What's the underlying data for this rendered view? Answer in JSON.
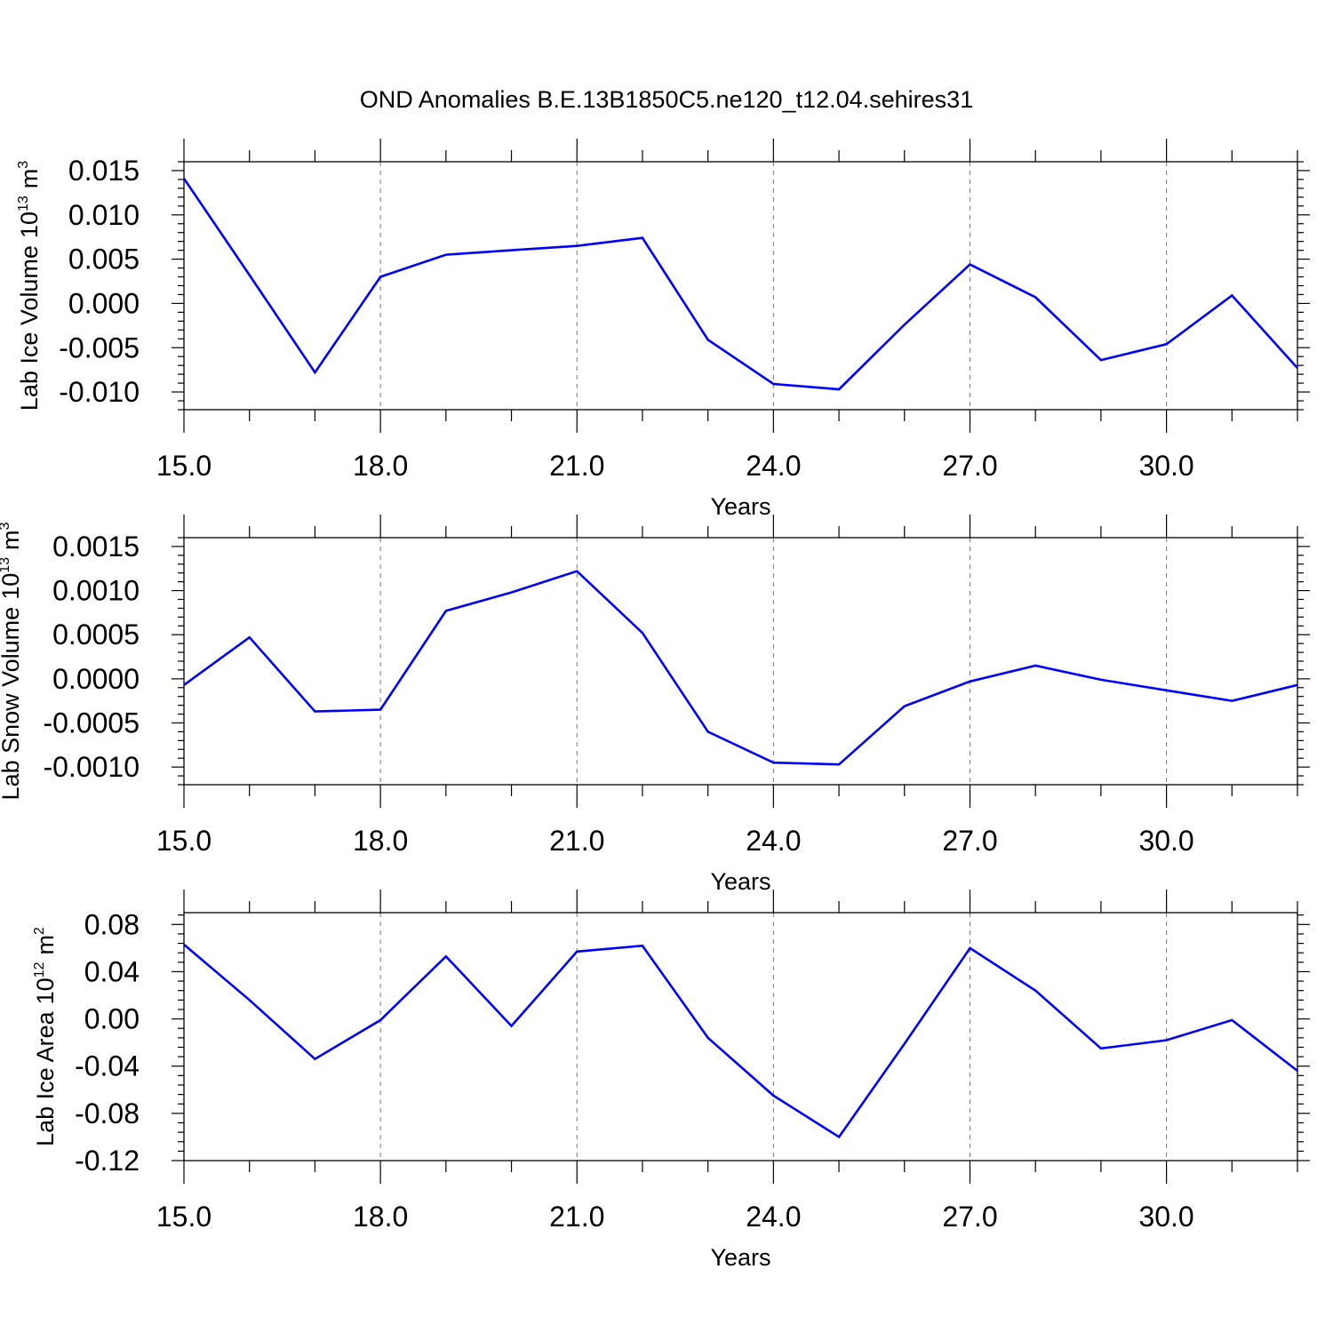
{
  "title": "OND Anomalies B.E.13B1850C5.ne120_t12.04.sehires31",
  "colors": {
    "series": "#0000ff",
    "axis": "#000000",
    "grid": "#777777"
  },
  "chart_data": [
    {
      "type": "line",
      "ylabel": "Lab Ice Volume",
      "ylabel_sup": "10",
      "ylabel_exp": "13",
      "ylabel_unit": "m",
      "ylabel_unit_exp": "3",
      "xlabel": "Years",
      "xlim": [
        15,
        32
      ],
      "ylim": [
        -0.012,
        0.016
      ],
      "x_ticks": [
        "15.0",
        "18.0",
        "21.0",
        "24.0",
        "27.0",
        "30.0"
      ],
      "y_ticks": [
        "0.015",
        "0.010",
        "0.005",
        "0.000",
        "-0.005",
        "-0.010"
      ],
      "x": [
        15,
        16,
        17,
        18,
        19,
        20,
        21,
        22,
        23,
        24,
        25,
        26,
        27,
        28,
        29,
        30,
        31,
        32
      ],
      "values": [
        0.0141,
        0.0032,
        -0.0078,
        0.003,
        0.0055,
        0.006,
        0.0065,
        0.0074,
        -0.0041,
        -0.0091,
        -0.0097,
        -0.0024,
        0.0044,
        0.0007,
        -0.0064,
        -0.0046,
        0.0009,
        -0.0073
      ]
    },
    {
      "type": "line",
      "ylabel": "Lab Snow Volume",
      "ylabel_sup": "10",
      "ylabel_exp": "13",
      "ylabel_unit": "m",
      "ylabel_unit_exp": "3",
      "xlabel": "Years",
      "xlim": [
        15,
        32
      ],
      "ylim": [
        -0.0012,
        0.0016
      ],
      "x_ticks": [
        "15.0",
        "18.0",
        "21.0",
        "24.0",
        "27.0",
        "30.0"
      ],
      "y_ticks": [
        "0.0015",
        "0.0010",
        "0.0005",
        "0.0000",
        "-0.0005",
        "-0.0010"
      ],
      "x": [
        15,
        16,
        17,
        18,
        19,
        20,
        21,
        22,
        23,
        24,
        25,
        26,
        27,
        28,
        29,
        30,
        31,
        32
      ],
      "values": [
        -7e-05,
        0.00047,
        -0.00037,
        -0.00035,
        0.00077,
        0.00098,
        0.00122,
        0.00052,
        -0.0006,
        -0.00095,
        -0.00097,
        -0.00031,
        -3e-05,
        0.00015,
        -1e-05,
        -0.00013,
        -0.00025,
        -7e-05
      ]
    },
    {
      "type": "line",
      "ylabel": "Lab Ice Area",
      "ylabel_sup": "10",
      "ylabel_exp": "12",
      "ylabel_unit": "m",
      "ylabel_unit_exp": "2",
      "xlabel": "Years",
      "xlim": [
        15,
        32
      ],
      "ylim": [
        -0.12,
        0.09
      ],
      "x_ticks": [
        "15.0",
        "18.0",
        "21.0",
        "24.0",
        "27.0",
        "30.0"
      ],
      "y_ticks": [
        "0.08",
        "0.04",
        "0.00",
        "-0.04",
        "-0.08",
        "-0.12"
      ],
      "x": [
        15,
        16,
        17,
        18,
        19,
        20,
        21,
        22,
        23,
        24,
        25,
        26,
        27,
        28,
        29,
        30,
        31,
        32
      ],
      "values": [
        0.063,
        0.016,
        -0.034,
        -0.001,
        0.053,
        -0.006,
        0.057,
        0.062,
        -0.016,
        -0.065,
        -0.1,
        -0.021,
        0.06,
        0.024,
        -0.025,
        -0.018,
        -0.001,
        -0.044
      ]
    }
  ]
}
